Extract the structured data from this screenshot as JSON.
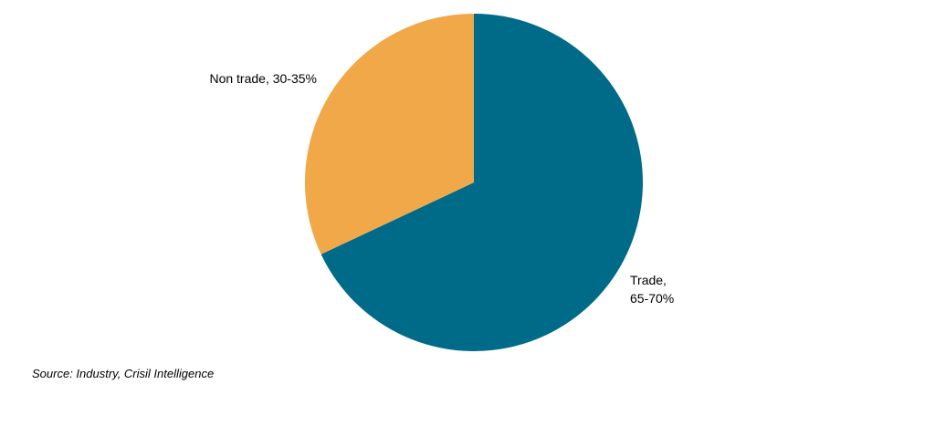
{
  "chart_data": {
    "type": "pie",
    "labels": [
      "Trade, 65-70%",
      "Non trade, 30-35%"
    ],
    "values": [
      68,
      32
    ],
    "colors": [
      "#006a89",
      "#f0a848"
    ],
    "source": "Source: Industry, Crisil Intelligence"
  }
}
